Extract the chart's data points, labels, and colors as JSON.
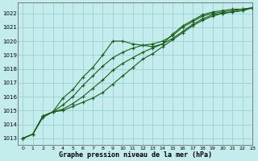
{
  "title": "Graphe pression niveau de la mer (hPa)",
  "bg_color": "#c5ecec",
  "grid_color": "#a0d4d4",
  "line_color": "#1a5c1a",
  "marker": "+",
  "xlim": [
    -0.5,
    23
  ],
  "ylim": [
    1012.5,
    1022.8
  ],
  "yticks": [
    1013,
    1014,
    1015,
    1016,
    1017,
    1018,
    1019,
    1020,
    1021,
    1022
  ],
  "xticks": [
    0,
    1,
    2,
    3,
    4,
    5,
    6,
    7,
    8,
    9,
    10,
    11,
    12,
    13,
    14,
    15,
    16,
    17,
    18,
    19,
    20,
    21,
    22,
    23
  ],
  "series": [
    [
      1013.0,
      1013.3,
      1014.6,
      1014.9,
      1015.9,
      1016.5,
      1017.4,
      1018.1,
      1019.0,
      1020.0,
      1020.0,
      1019.8,
      1019.7,
      1019.6,
      1019.8,
      1020.5,
      1021.1,
      1021.5,
      1021.9,
      1022.1,
      1022.2,
      1022.3,
      1022.3,
      1022.4
    ],
    [
      1013.0,
      1013.3,
      1014.6,
      1014.9,
      1015.4,
      1016.0,
      1016.8,
      1017.5,
      1018.2,
      1018.8,
      1019.2,
      1019.5,
      1019.7,
      1019.8,
      1020.0,
      1020.4,
      1021.0,
      1021.4,
      1021.8,
      1022.0,
      1022.1,
      1022.2,
      1022.3,
      1022.4
    ],
    [
      1013.0,
      1013.3,
      1014.6,
      1014.9,
      1015.1,
      1015.5,
      1016.0,
      1016.6,
      1017.2,
      1017.9,
      1018.4,
      1018.8,
      1019.2,
      1019.5,
      1019.8,
      1020.2,
      1020.7,
      1021.2,
      1021.6,
      1021.9,
      1022.0,
      1022.1,
      1022.2,
      1022.4
    ],
    [
      1013.0,
      1013.3,
      1014.5,
      1014.9,
      1015.0,
      1015.3,
      1015.6,
      1015.9,
      1016.3,
      1016.9,
      1017.5,
      1018.1,
      1018.7,
      1019.1,
      1019.6,
      1020.1,
      1020.6,
      1021.1,
      1021.5,
      1021.8,
      1022.0,
      1022.1,
      1022.2,
      1022.4
    ]
  ]
}
